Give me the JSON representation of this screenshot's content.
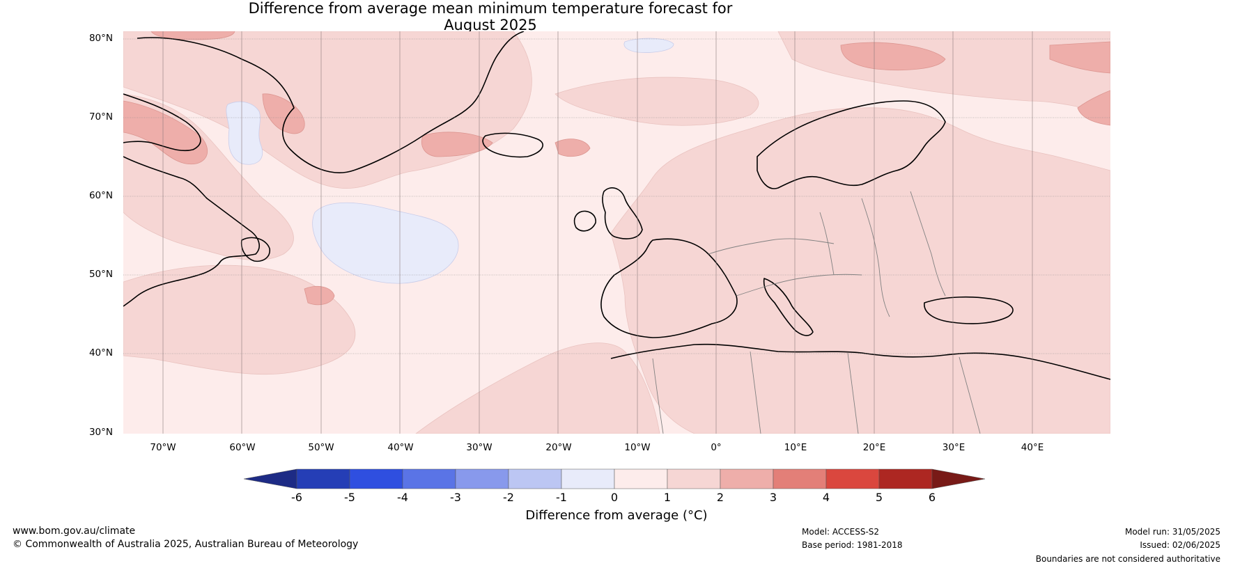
{
  "title": {
    "line1": "Difference from average mean minimum temperature forecast for",
    "line2": "August 2025"
  },
  "map": {
    "lat_labels": [
      "80°N",
      "70°N",
      "60°N",
      "50°N",
      "40°N",
      "30°N"
    ],
    "lon_labels": [
      "70°W",
      "60°W",
      "50°W",
      "40°W",
      "30°W",
      "20°W",
      "10°W",
      "0°",
      "10°E",
      "20°E",
      "30°E",
      "40°E"
    ],
    "colors": {
      "anom_0_1": "#fdeceb",
      "anom_1_2": "#f6d6d4",
      "anom_2_3": "#eeaeaa",
      "anom_neg1_0": "#e8ebfa"
    }
  },
  "colorbar": {
    "ticks": [
      "-6",
      "-5",
      "-4",
      "-3",
      "-2",
      "-1",
      "0",
      "1",
      "2",
      "3",
      "4",
      "5",
      "6"
    ],
    "label": "Difference from average (°C)",
    "colors": [
      "#1d2b85",
      "#253eb6",
      "#2f4fe0",
      "#5a74e6",
      "#8899ec",
      "#bcc6f3",
      "#e8ebfa",
      "#fdeceb",
      "#f6d6d4",
      "#eeaeaa",
      "#e37f78",
      "#da473e",
      "#ad2722",
      "#781a17"
    ]
  },
  "footer": {
    "website": "www.bom.gov.au/climate",
    "copyright": "© Commonwealth of Australia 2025, Australian Bureau of Meteorology",
    "model": "Model: ACCESS-S2",
    "base_period": "Base period: 1981-2018",
    "model_run": "Model run: 31/05/2025",
    "issued": "Issued: 02/06/2025",
    "disclaimer": "Boundaries are not considered authoritative"
  }
}
